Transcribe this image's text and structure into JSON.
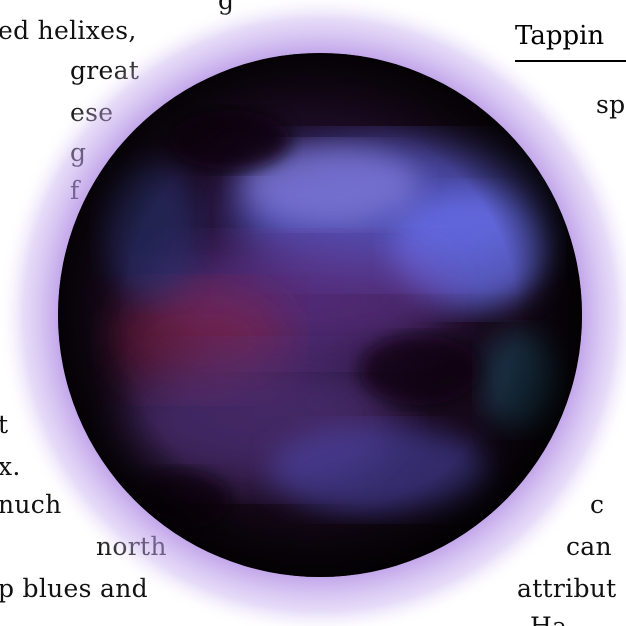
{
  "left_column": {
    "lines": [
      "g",
      "ed helixes,",
      "great",
      "ese",
      "g",
      "f",
      "t",
      "x.",
      "nuch",
      "north",
      "p blues and"
    ]
  },
  "right_column": {
    "heading": "Tappin",
    "lines": [
      "sp",
      "c",
      "can",
      "attribut",
      "Ha"
    ]
  },
  "planet": {
    "glow_color": "#a77fe0",
    "surface_color": "#120614",
    "nebula_blue": "#5d62d8",
    "nebula_red": "#8a2440",
    "nebula_violet": "#6a3a9a"
  }
}
